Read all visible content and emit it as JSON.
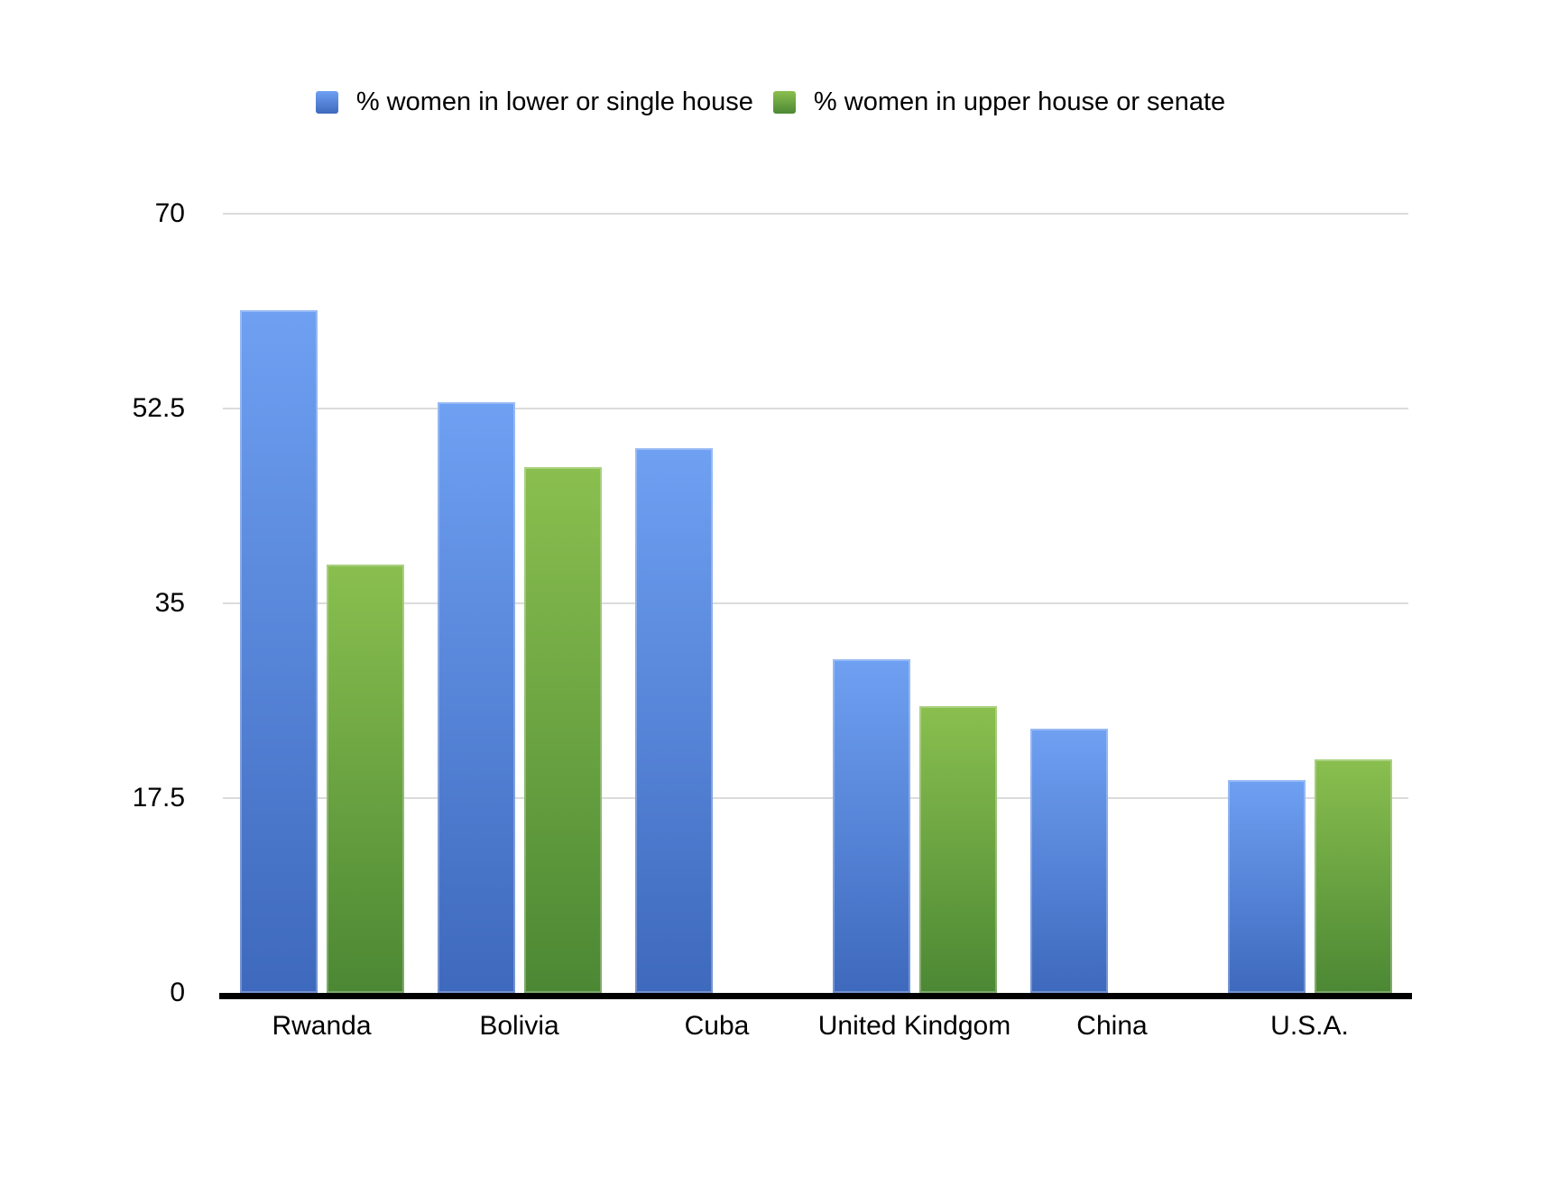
{
  "chart_data": {
    "type": "bar",
    "title": "",
    "xlabel": "",
    "ylabel": "",
    "categories": [
      "Rwanda",
      "Bolivia",
      "Cuba",
      "United Kindgom",
      "China",
      "U.S.A."
    ],
    "series": [
      {
        "name": "% women in lower or single house",
        "color_top": "#6FA0F2",
        "color_bottom": "#3E69BD",
        "values": [
          61.3,
          53.1,
          48.9,
          30,
          23.7,
          19.1
        ]
      },
      {
        "name": "% women in upper house or senate",
        "color_top": "#8ABF4F",
        "color_bottom": "#4C8834",
        "values": [
          38.5,
          47.2,
          null,
          25.8,
          null,
          21
        ]
      }
    ],
    "ylim": [
      0,
      70
    ],
    "yticks": [
      0,
      17.5,
      35,
      52.5,
      70
    ],
    "grid": true,
    "legend_position": "top"
  },
  "colors": {
    "background": "#ffffff",
    "gridline": "#dcdcdc",
    "axis_line": "#000000",
    "text": "#000000"
  }
}
